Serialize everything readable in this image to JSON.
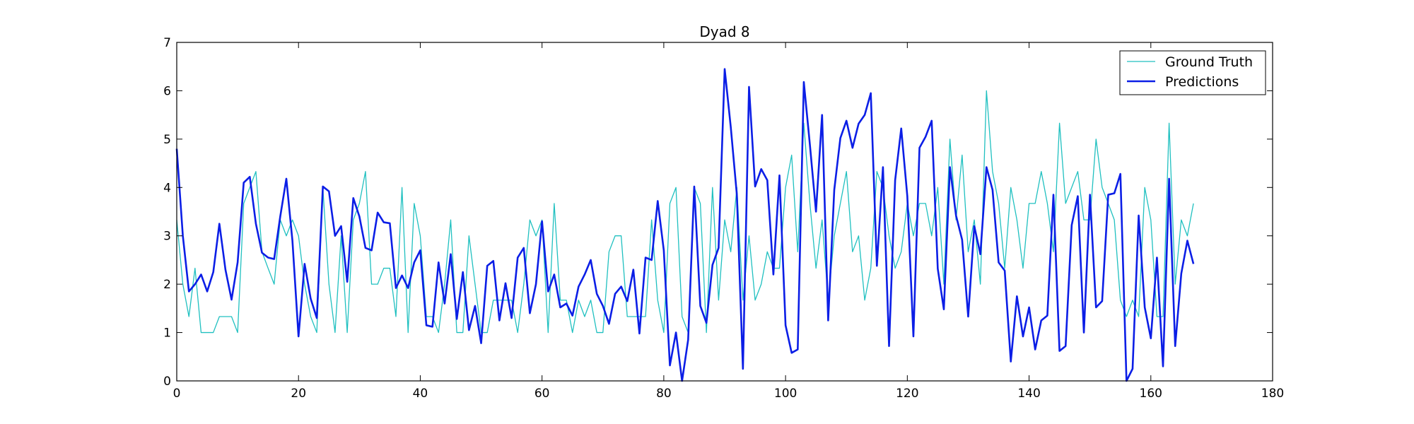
{
  "chart_data": {
    "type": "line",
    "title": "Dyad 8",
    "xlabel": "",
    "ylabel": "",
    "xlim": [
      0,
      180
    ],
    "ylim": [
      0,
      7
    ],
    "xticks": [
      0,
      20,
      40,
      60,
      80,
      100,
      120,
      140,
      160,
      180
    ],
    "yticks": [
      0,
      1,
      2,
      3,
      4,
      5,
      6,
      7
    ],
    "grid": false,
    "legend_position": "top-right",
    "series": [
      {
        "name": "Ground Truth",
        "color": "#20c0c0",
        "x": [
          0,
          1,
          2,
          3,
          4,
          5,
          6,
          7,
          8,
          9,
          10,
          11,
          12,
          13,
          14,
          15,
          16,
          17,
          18,
          19,
          20,
          21,
          22,
          23,
          24,
          25,
          26,
          27,
          28,
          29,
          30,
          31,
          32,
          33,
          34,
          35,
          36,
          37,
          38,
          39,
          40,
          41,
          42,
          43,
          44,
          45,
          46,
          47,
          48,
          49,
          50,
          51,
          52,
          53,
          54,
          55,
          56,
          57,
          58,
          59,
          60,
          61,
          62,
          63,
          64,
          65,
          66,
          67,
          68,
          69,
          70,
          71,
          72,
          73,
          74,
          75,
          76,
          77,
          78,
          79,
          80,
          81,
          82,
          83,
          84,
          85,
          86,
          87,
          88,
          89,
          90,
          91,
          92,
          93,
          94,
          95,
          96,
          97,
          98,
          99,
          100,
          101,
          102,
          103,
          104,
          105,
          106,
          107,
          108,
          109,
          110,
          111,
          112,
          113,
          114,
          115,
          116,
          117,
          118,
          119,
          120,
          121,
          122,
          123,
          124,
          125,
          126,
          127,
          128,
          129,
          130,
          131,
          132,
          133,
          134,
          135,
          136,
          137,
          138,
          139,
          140,
          141,
          142,
          143,
          144,
          145,
          146,
          147,
          148,
          149,
          150,
          151,
          152,
          153,
          154,
          155,
          156,
          157,
          158,
          159,
          160,
          161,
          162,
          163,
          164,
          165,
          166,
          167
        ],
        "y": [
          3.33,
          2.0,
          1.33,
          2.33,
          1.0,
          1.0,
          1.0,
          1.33,
          1.33,
          1.33,
          1.0,
          3.67,
          4.0,
          4.33,
          2.67,
          2.33,
          2.0,
          3.33,
          3.0,
          3.33,
          3.0,
          2.0,
          1.33,
          1.0,
          4.0,
          2.0,
          1.0,
          3.0,
          1.0,
          3.33,
          3.67,
          4.33,
          2.0,
          2.0,
          2.33,
          2.33,
          1.33,
          4.0,
          1.0,
          3.67,
          3.0,
          1.33,
          1.33,
          1.0,
          2.0,
          3.33,
          1.0,
          1.0,
          3.0,
          2.0,
          1.0,
          1.0,
          1.67,
          1.67,
          1.67,
          1.67,
          1.0,
          2.0,
          3.33,
          3.0,
          3.33,
          1.0,
          3.67,
          1.67,
          1.67,
          1.0,
          1.67,
          1.33,
          1.67,
          1.0,
          1.0,
          2.67,
          3.0,
          3.0,
          1.33,
          1.33,
          1.33,
          1.33,
          3.33,
          1.67,
          1.0,
          3.67,
          4.0,
          1.33,
          1.0,
          4.0,
          3.67,
          1.0,
          4.0,
          1.67,
          3.33,
          2.67,
          4.0,
          1.67,
          3.0,
          1.67,
          2.0,
          2.67,
          2.33,
          2.33,
          4.0,
          4.67,
          2.67,
          5.33,
          3.67,
          2.33,
          3.33,
          1.67,
          3.0,
          3.67,
          4.33,
          2.67,
          3.0,
          1.67,
          2.33,
          4.33,
          4.0,
          3.0,
          2.33,
          2.67,
          3.67,
          3.0,
          3.67,
          3.67,
          3.0,
          4.0,
          2.0,
          5.0,
          3.33,
          4.67,
          2.67,
          3.33,
          2.0,
          6.0,
          4.33,
          3.67,
          2.33,
          4.0,
          3.33,
          2.33,
          3.67,
          3.67,
          4.33,
          3.67,
          2.67,
          5.33,
          3.67,
          4.0,
          4.33,
          3.33,
          3.33,
          5.0,
          4.0,
          3.67,
          3.33,
          1.67,
          1.33,
          1.67,
          1.33,
          4.0,
          3.33,
          1.33,
          1.33,
          5.33,
          2.0,
          3.33,
          3.0,
          3.67
        ]
      },
      {
        "name": "Predictions",
        "color": "#0b1ee6",
        "x": [
          0,
          1,
          2,
          3,
          4,
          5,
          6,
          7,
          8,
          9,
          10,
          11,
          12,
          13,
          14,
          15,
          16,
          17,
          18,
          19,
          20,
          21,
          22,
          23,
          24,
          25,
          26,
          27,
          28,
          29,
          30,
          31,
          32,
          33,
          34,
          35,
          36,
          37,
          38,
          39,
          40,
          41,
          42,
          43,
          44,
          45,
          46,
          47,
          48,
          49,
          50,
          51,
          52,
          53,
          54,
          55,
          56,
          57,
          58,
          59,
          60,
          61,
          62,
          63,
          64,
          65,
          66,
          67,
          68,
          69,
          70,
          71,
          72,
          73,
          74,
          75,
          76,
          77,
          78,
          79,
          80,
          81,
          82,
          83,
          84,
          85,
          86,
          87,
          88,
          89,
          90,
          91,
          92,
          93,
          94,
          95,
          96,
          97,
          98,
          99,
          100,
          101,
          102,
          103,
          104,
          105,
          106,
          107,
          108,
          109,
          110,
          111,
          112,
          113,
          114,
          115,
          116,
          117,
          118,
          119,
          120,
          121,
          122,
          123,
          124,
          125,
          126,
          127,
          128,
          129,
          130,
          131,
          132,
          133,
          134,
          135,
          136,
          137,
          138,
          139,
          140,
          141,
          142,
          143,
          144,
          145,
          146,
          147,
          148,
          149,
          150,
          151,
          152,
          153,
          154,
          155,
          156,
          157,
          158,
          159,
          160,
          161,
          162,
          163,
          164,
          165,
          166,
          167
        ],
        "y": [
          4.8,
          3.0,
          1.85,
          2.0,
          2.2,
          1.85,
          2.25,
          3.25,
          2.3,
          1.68,
          2.45,
          4.1,
          4.22,
          3.25,
          2.65,
          2.55,
          2.52,
          3.4,
          4.18,
          2.9,
          0.92,
          2.42,
          1.7,
          1.3,
          4.02,
          3.92,
          3.0,
          3.2,
          2.05,
          3.78,
          3.4,
          2.75,
          2.7,
          3.48,
          3.28,
          3.26,
          1.92,
          2.18,
          1.92,
          2.45,
          2.7,
          1.15,
          1.12,
          2.45,
          1.6,
          2.62,
          1.28,
          2.25,
          1.05,
          1.55,
          0.78,
          2.38,
          2.48,
          1.25,
          2.02,
          1.3,
          2.55,
          2.75,
          1.4,
          2.0,
          3.3,
          1.85,
          2.2,
          1.52,
          1.6,
          1.35,
          1.95,
          2.2,
          2.5,
          1.8,
          1.55,
          1.18,
          1.8,
          1.95,
          1.65,
          2.3,
          0.98,
          2.55,
          2.5,
          3.72,
          2.7,
          0.32,
          1.0,
          0.0,
          0.85,
          4.02,
          1.55,
          1.2,
          2.4,
          2.75,
          6.45,
          5.25,
          3.85,
          0.25,
          6.08,
          4.02,
          4.38,
          4.15,
          2.2,
          4.25,
          1.15,
          0.58,
          0.65,
          6.18,
          4.88,
          3.5,
          5.5,
          1.25,
          3.95,
          5.02,
          5.38,
          4.82,
          5.32,
          5.5,
          5.95,
          2.38,
          4.42,
          0.72,
          4.15,
          5.22,
          3.82,
          0.92,
          4.82,
          5.05,
          5.38,
          2.32,
          1.48,
          4.42,
          3.42,
          2.92,
          1.33,
          3.2,
          2.62,
          4.42,
          3.95,
          2.45,
          2.28,
          0.4,
          1.75,
          0.92,
          1.52,
          0.65,
          1.25,
          1.35,
          3.85,
          0.62,
          0.72,
          3.22,
          3.82,
          1.0,
          3.85,
          1.52,
          1.65,
          3.85,
          3.88,
          4.28,
          0.0,
          0.25,
          3.42,
          1.52,
          0.88,
          2.55,
          0.3,
          4.18,
          0.72,
          2.22,
          2.9,
          2.42
        ]
      }
    ]
  }
}
